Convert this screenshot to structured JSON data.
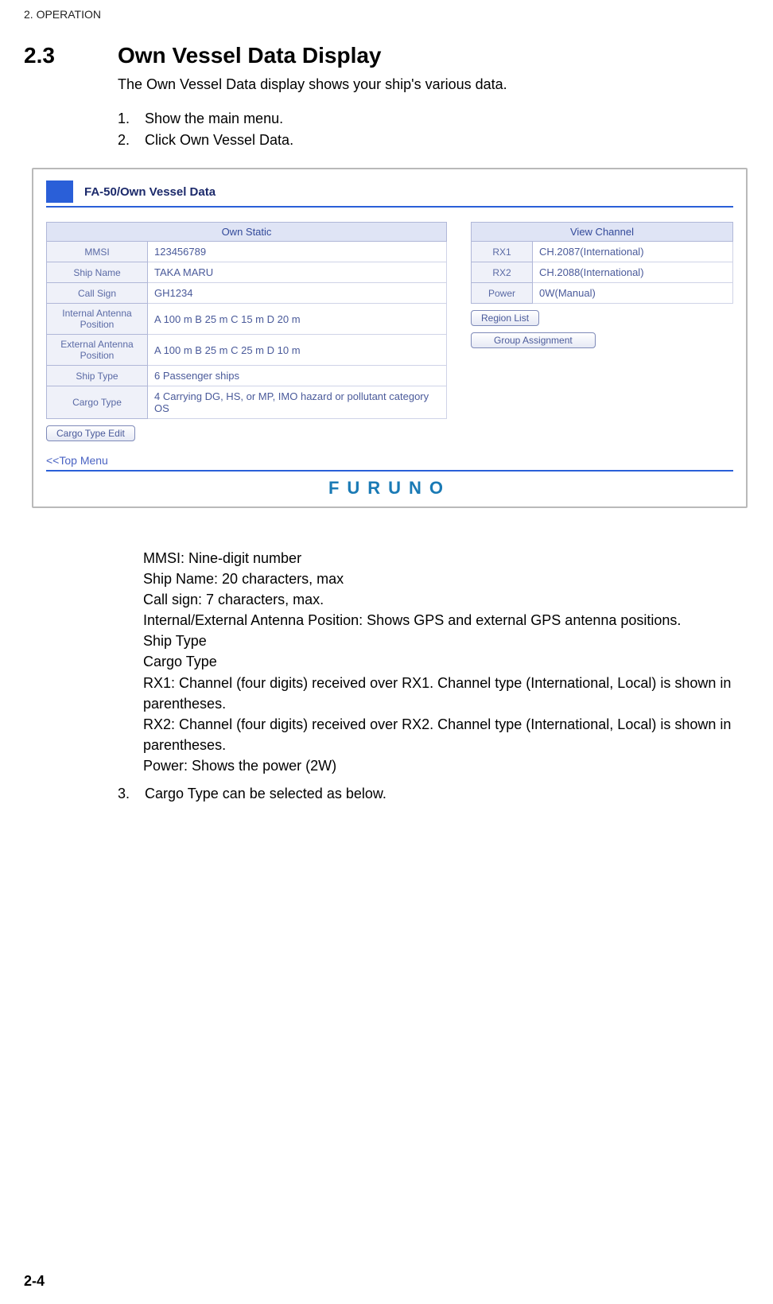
{
  "chapter_head": "2.  OPERATION",
  "section_num": "2.3",
  "section_title": "Own Vessel Data Display",
  "intro": "The Own Vessel Data display shows your ship's various data.",
  "steps": [
    "Show the main menu.",
    "Click Own Vessel Data."
  ],
  "shot": {
    "title": "FA-50/Own Vessel Data",
    "own_static": {
      "header": "Own Static",
      "rows": [
        {
          "label": "MMSI",
          "value": "123456789"
        },
        {
          "label": "Ship Name",
          "value": "TAKA MARU"
        },
        {
          "label": "Call Sign",
          "value": "GH1234"
        },
        {
          "label": "Internal Antenna Position",
          "value": "A 100 m B 25 m C 15 m D 20 m"
        },
        {
          "label": "External Antenna Position",
          "value": "A 100 m B 25 m C 25 m D 10 m"
        },
        {
          "label": "Ship Type",
          "value": "6 Passenger ships"
        },
        {
          "label": "Cargo Type",
          "value": "4 Carrying DG, HS, or MP, IMO hazard or pollutant category OS"
        }
      ]
    },
    "view_channel": {
      "header": "View Channel",
      "rows": [
        {
          "label": "RX1",
          "value": "CH.2087(International)"
        },
        {
          "label": "RX2",
          "value": "CH.2088(International)"
        },
        {
          "label": "Power",
          "value": "0W(Manual)"
        }
      ]
    },
    "buttons": {
      "cargo_edit": "Cargo Type Edit",
      "region_list": "Region List",
      "group_assign": "Group Assignment"
    },
    "top_link": "<<Top Menu",
    "brand": "FURUNO"
  },
  "desc_lines": [
    "MMSI: Nine-digit number",
    "Ship Name: 20 characters, max",
    "Call sign: 7 characters, max.",
    "Internal/External Antenna Position: Shows GPS and external GPS antenna positions.",
    "Ship Type",
    "Cargo Type",
    "RX1: Channel (four digits) received over RX1. Channel type (International, Local) is shown in parentheses.",
    "RX2: Channel (four digits) received over RX2. Channel type (International, Local) is shown in parentheses.",
    "Power: Shows the power (2W)"
  ],
  "final_step_num": "3.",
  "final_step": "Cargo Type can be selected as below.",
  "page_num": "2-4",
  "colors": {
    "rule_blue": "#2a5fd8",
    "label_bg": "#eff1f9",
    "header_bg": "#dfe4f5",
    "border": "#b0b7d8",
    "label_text": "#5a6aa5",
    "val_text": "#4a5a9a",
    "brand": "#1a7ab5"
  }
}
